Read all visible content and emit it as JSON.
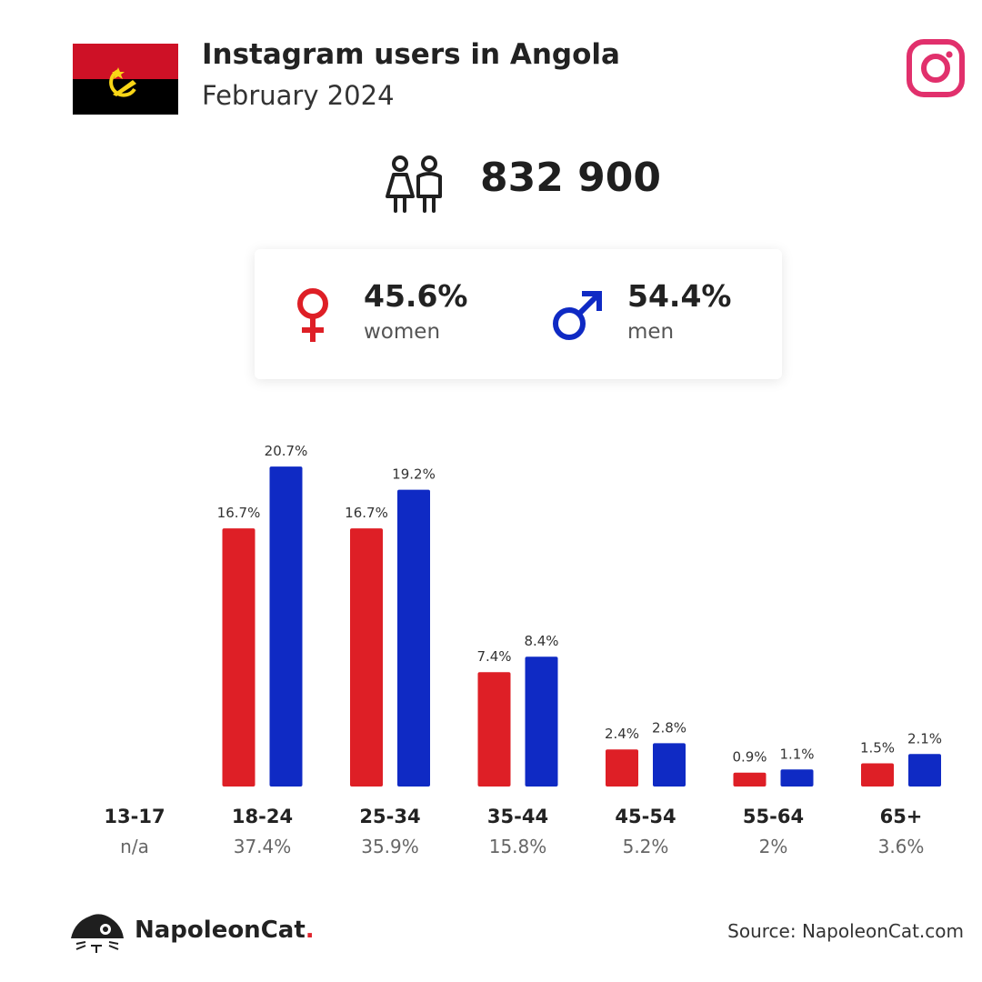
{
  "header": {
    "title": "Instagram users in Angola",
    "subtitle": "February 2024"
  },
  "total": {
    "users": "832 900"
  },
  "gender": {
    "women_pct": "45.6%",
    "women_label": "women",
    "men_pct": "54.4%",
    "men_label": "men"
  },
  "colors": {
    "women": "#de1f26",
    "men": "#0f2ac4",
    "instagram": "#e1306c",
    "brand_accent": "#e0242d"
  },
  "chart_data": {
    "type": "bar",
    "categories": [
      "13-17",
      "18-24",
      "25-34",
      "35-44",
      "45-54",
      "55-64",
      "65+"
    ],
    "category_totals": [
      "n/a",
      "37.4%",
      "35.9%",
      "15.8%",
      "5.2%",
      "2%",
      "3.6%"
    ],
    "series": [
      {
        "name": "women",
        "values": [
          null,
          16.7,
          16.7,
          7.4,
          2.4,
          0.9,
          1.5
        ],
        "labels": [
          "",
          "16.7%",
          "16.7%",
          "7.4%",
          "2.4%",
          "0.9%",
          "1.5%"
        ],
        "color": "#de1f26"
      },
      {
        "name": "men",
        "values": [
          null,
          20.7,
          19.2,
          8.4,
          2.8,
          1.1,
          2.1
        ],
        "labels": [
          "",
          "20.7%",
          "19.2%",
          "8.4%",
          "2.8%",
          "1.1%",
          "2.1%"
        ],
        "color": "#0f2ac4"
      }
    ],
    "unit": "%",
    "grid": false,
    "legend": "none"
  },
  "footer": {
    "brand_name": "NapoleonCat",
    "brand_dot": ".",
    "source": "Source: NapoleonCat.com"
  }
}
